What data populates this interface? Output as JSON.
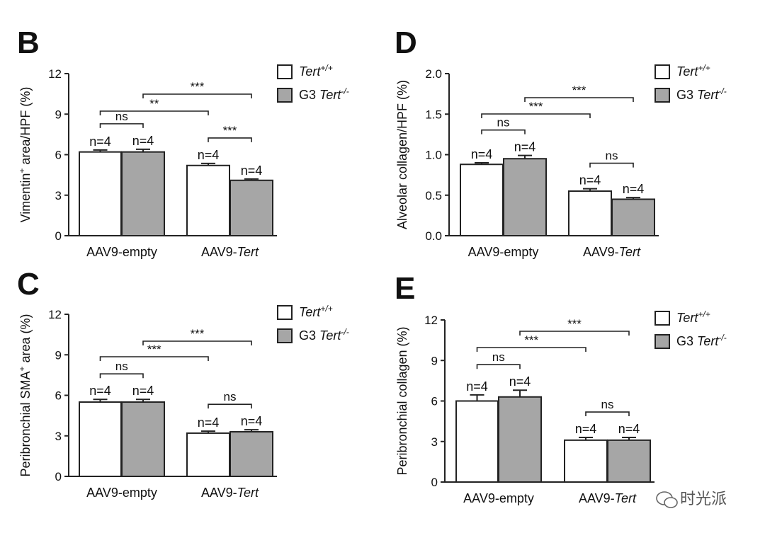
{
  "colors": {
    "wild_type_fill": "#ffffff",
    "g3_fill": "#a6a6a6",
    "stroke": "#222222"
  },
  "legend": {
    "series1": {
      "main": "Tert",
      "sup": "+/+"
    },
    "series2": {
      "prefix": "G3 ",
      "main": "Tert",
      "sup": "-/-"
    }
  },
  "watermark": "时光派",
  "watermark_icon": "wechat-icon",
  "chart_data": [
    {
      "id": "B",
      "panel_letter": "B",
      "type": "bar",
      "ylabel_pre": "Vimentin",
      "ylabel_sup": "+",
      "ylabel_post": " area/HPF (%)",
      "ylim": [
        0,
        12
      ],
      "yticks": [
        "0",
        "3",
        "6",
        "9",
        "12"
      ],
      "categories": [
        {
          "name": "AAV9-empty",
          "italic_part": ""
        },
        {
          "name": "AAV9-",
          "italic_part": "Tert"
        }
      ],
      "series": [
        {
          "name": "Tert+/+",
          "values": [
            6.2,
            5.2
          ],
          "errors": [
            0.15,
            0.15
          ]
        },
        {
          "name": "G3 Tert-/-",
          "values": [
            6.2,
            4.1
          ],
          "errors": [
            0.2,
            0.1
          ]
        }
      ],
      "n_labels": [
        [
          "n=4",
          "n=4"
        ],
        [
          "n=4",
          "n=4"
        ]
      ],
      "brackets": [
        {
          "from": [
            0,
            0
          ],
          "to": [
            0,
            1
          ],
          "label": "ns"
        },
        {
          "from": [
            1,
            0
          ],
          "to": [
            1,
            1
          ],
          "label": "***"
        },
        {
          "from": [
            0,
            0
          ],
          "to": [
            1,
            0
          ],
          "label": "**"
        },
        {
          "from": [
            0,
            1
          ],
          "to": [
            1,
            1
          ],
          "label": "***"
        }
      ]
    },
    {
      "id": "D",
      "panel_letter": "D",
      "type": "bar",
      "ylabel_pre": "Alveolar collagen/HPF (%)",
      "ylabel_sup": "",
      "ylabel_post": "",
      "ylim": [
        0,
        2
      ],
      "yticks": [
        "0.0",
        "0.5",
        "1.0",
        "1.5",
        "2.0"
      ],
      "categories": [
        {
          "name": "AAV9-empty",
          "italic_part": ""
        },
        {
          "name": "AAV9-",
          "italic_part": "Tert"
        }
      ],
      "series": [
        {
          "name": "Tert+/+",
          "values": [
            0.88,
            0.55
          ],
          "errors": [
            0.02,
            0.03
          ]
        },
        {
          "name": "G3 Tert-/-",
          "values": [
            0.95,
            0.45
          ],
          "errors": [
            0.04,
            0.02
          ]
        }
      ],
      "n_labels": [
        [
          "n=4",
          "n=4"
        ],
        [
          "n=4",
          "n=4"
        ]
      ],
      "brackets": [
        {
          "from": [
            0,
            0
          ],
          "to": [
            0,
            1
          ],
          "label": "ns"
        },
        {
          "from": [
            1,
            0
          ],
          "to": [
            1,
            1
          ],
          "label": "ns"
        },
        {
          "from": [
            0,
            0
          ],
          "to": [
            1,
            0
          ],
          "label": "***"
        },
        {
          "from": [
            0,
            1
          ],
          "to": [
            1,
            1
          ],
          "label": "***"
        }
      ]
    },
    {
      "id": "C",
      "panel_letter": "C",
      "type": "bar",
      "ylabel_pre": "Peribronchial SMA",
      "ylabel_sup": "+",
      "ylabel_post": " area (%)",
      "ylim": [
        0,
        12
      ],
      "yticks": [
        "0",
        "3",
        "6",
        "9",
        "12"
      ],
      "categories": [
        {
          "name": "AAV9-empty",
          "italic_part": ""
        },
        {
          "name": "AAV9-",
          "italic_part": "Tert"
        }
      ],
      "series": [
        {
          "name": "Tert+/+",
          "values": [
            5.5,
            3.2
          ],
          "errors": [
            0.2,
            0.15
          ]
        },
        {
          "name": "G3 Tert-/-",
          "values": [
            5.5,
            3.3
          ],
          "errors": [
            0.2,
            0.15
          ]
        }
      ],
      "n_labels": [
        [
          "n=4",
          "n=4"
        ],
        [
          "n=4",
          "n=4"
        ]
      ],
      "brackets": [
        {
          "from": [
            0,
            0
          ],
          "to": [
            0,
            1
          ],
          "label": "ns"
        },
        {
          "from": [
            1,
            0
          ],
          "to": [
            1,
            1
          ],
          "label": "ns"
        },
        {
          "from": [
            0,
            0
          ],
          "to": [
            1,
            0
          ],
          "label": "***"
        },
        {
          "from": [
            0,
            1
          ],
          "to": [
            1,
            1
          ],
          "label": "***"
        }
      ]
    },
    {
      "id": "E",
      "panel_letter": "E",
      "type": "bar",
      "ylabel_pre": "Peribronchial collagen (%)",
      "ylabel_sup": "",
      "ylabel_post": "",
      "ylim": [
        0,
        12
      ],
      "yticks": [
        "0",
        "3",
        "6",
        "9",
        "12"
      ],
      "categories": [
        {
          "name": "AAV9-empty",
          "italic_part": ""
        },
        {
          "name": "AAV9-",
          "italic_part": "Tert"
        }
      ],
      "series": [
        {
          "name": "Tert+/+",
          "values": [
            6.0,
            3.1
          ],
          "errors": [
            0.45,
            0.2
          ]
        },
        {
          "name": "G3 Tert-/-",
          "values": [
            6.3,
            3.1
          ],
          "errors": [
            0.5,
            0.2
          ]
        }
      ],
      "n_labels": [
        [
          "n=4",
          "n=4"
        ],
        [
          "n=4",
          "n=4"
        ]
      ],
      "brackets": [
        {
          "from": [
            0,
            0
          ],
          "to": [
            0,
            1
          ],
          "label": "ns"
        },
        {
          "from": [
            1,
            0
          ],
          "to": [
            1,
            1
          ],
          "label": "ns"
        },
        {
          "from": [
            0,
            0
          ],
          "to": [
            1,
            0
          ],
          "label": "***"
        },
        {
          "from": [
            0,
            1
          ],
          "to": [
            1,
            1
          ],
          "label": "***"
        }
      ]
    }
  ]
}
